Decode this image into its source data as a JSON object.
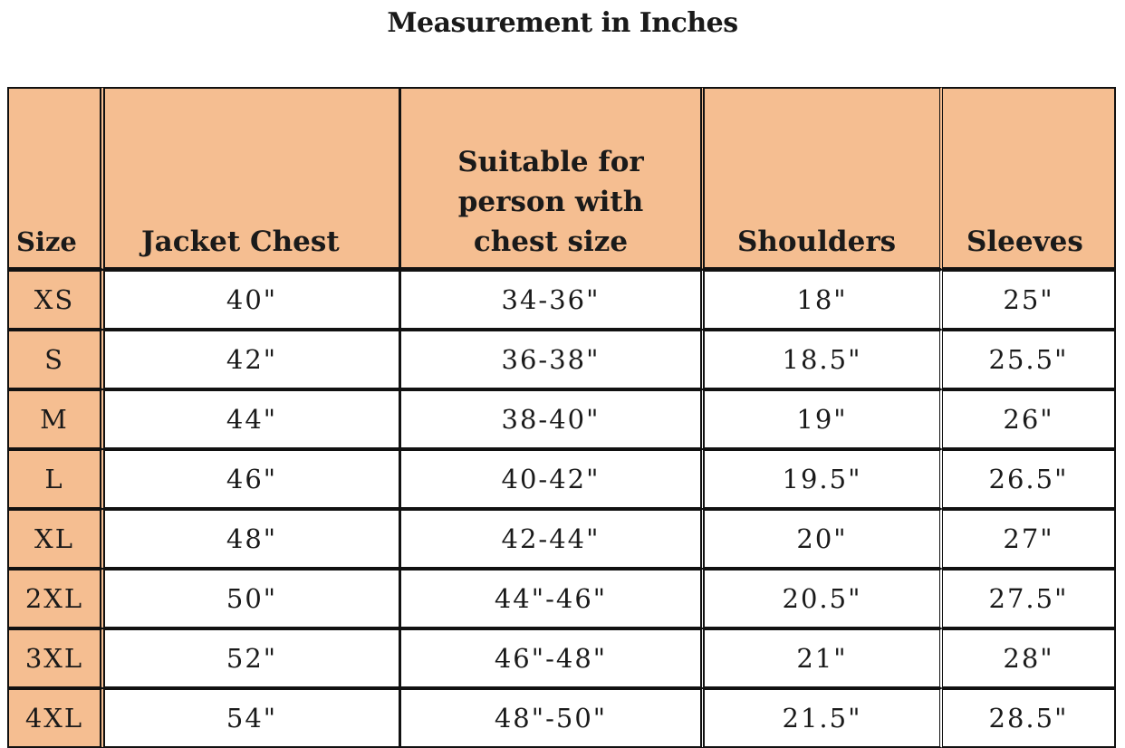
{
  "title": "Measurement in Inches",
  "headers": {
    "size": "Size",
    "jacket_chest": "Jacket Chest",
    "suitable_line1": "Suitable for",
    "suitable_line2": "person with",
    "suitable_line3": "chest size",
    "shoulders": "Shoulders",
    "sleeves": "Sleeves"
  },
  "rows": [
    {
      "size": "XS",
      "jacket_chest": "40\"",
      "suitable": "34-36\"",
      "shoulders": "18\"",
      "sleeves": "25\""
    },
    {
      "size": "S",
      "jacket_chest": "42\"",
      "suitable": "36-38\"",
      "shoulders": "18.5\"",
      "sleeves": "25.5\""
    },
    {
      "size": "M",
      "jacket_chest": "44\"",
      "suitable": "38-40\"",
      "shoulders": "19\"",
      "sleeves": "26\""
    },
    {
      "size": "L",
      "jacket_chest": "46\"",
      "suitable": "40-42\"",
      "shoulders": "19.5\"",
      "sleeves": "26.5\""
    },
    {
      "size": "XL",
      "jacket_chest": "48\"",
      "suitable": "42-44\"",
      "shoulders": "20\"",
      "sleeves": "27\""
    },
    {
      "size": "2XL",
      "jacket_chest": "50\"",
      "suitable": "44\"-46\"",
      "shoulders": "20.5\"",
      "sleeves": "27.5\""
    },
    {
      "size": "3XL",
      "jacket_chest": "52\"",
      "suitable": "46\"-48\"",
      "shoulders": "21\"",
      "sleeves": "28\""
    },
    {
      "size": "4XL",
      "jacket_chest": "54\"",
      "suitable": "48\"-50\"",
      "shoulders": "21.5\"",
      "sleeves": "28.5\""
    }
  ],
  "colors": {
    "header_fill": "#f5be91",
    "size_cell_fill": "#f5be91",
    "border": "#111111"
  }
}
